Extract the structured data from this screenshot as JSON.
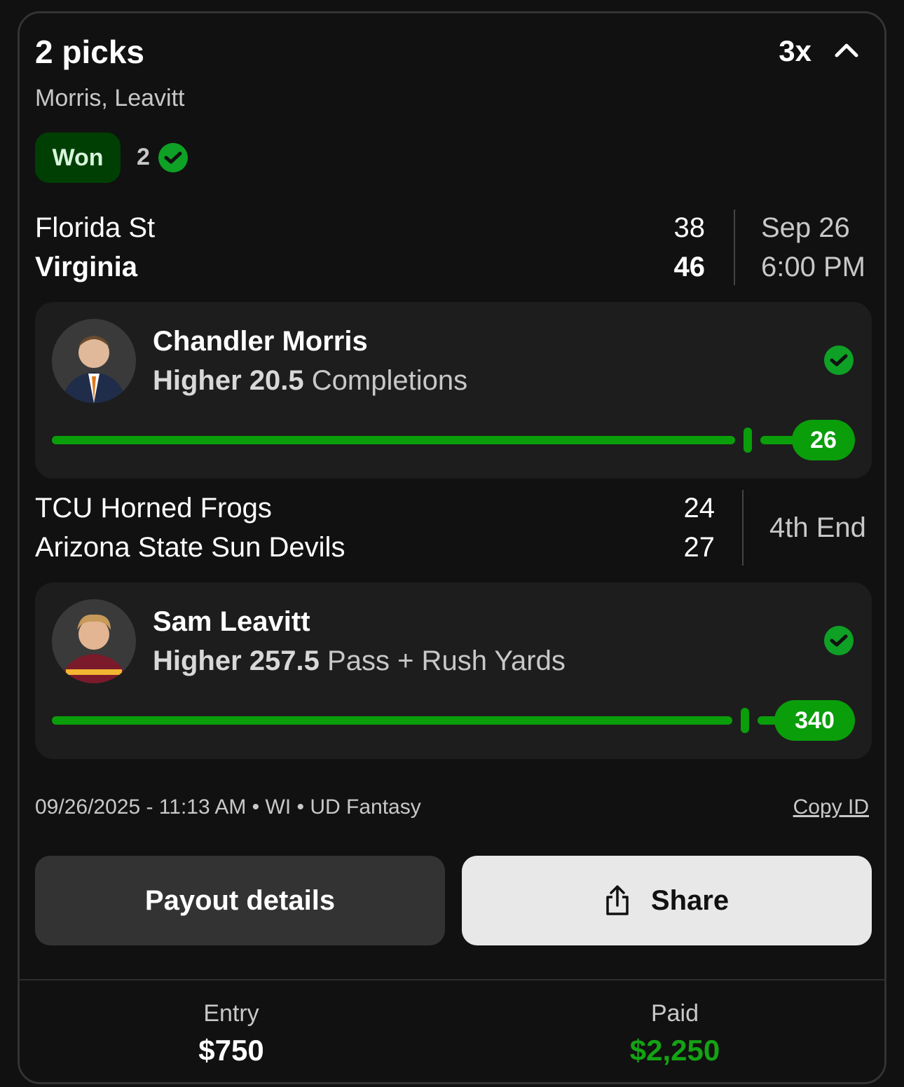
{
  "header": {
    "title": "2 picks",
    "multiplier": "3x",
    "players": "Morris, Leavitt",
    "status": "Won",
    "correct_count": "2"
  },
  "games": [
    {
      "team1": "Florida St",
      "score1": "38",
      "team2": "Virginia",
      "score2": "46",
      "date": "Sep 26",
      "time": "6:00 PM",
      "winner": "team2"
    },
    {
      "team1": "TCU Horned Frogs",
      "score1": "24",
      "team2": "Arizona State Sun Devils",
      "score2": "27",
      "status": "4th End"
    }
  ],
  "picks": [
    {
      "player": "Chandler Morris",
      "direction": "Higher",
      "line": "20.5",
      "stat": "Completions",
      "actual": "26",
      "result": "won"
    },
    {
      "player": "Sam Leavitt",
      "direction": "Higher",
      "line": "257.5",
      "stat": "Pass + Rush Yards",
      "actual": "340",
      "result": "won"
    }
  ],
  "meta": {
    "info": "09/26/2025 - 11:13 AM • WI • UD Fantasy",
    "copy_id": "Copy ID"
  },
  "buttons": {
    "payout": "Payout details",
    "share": "Share"
  },
  "footer": {
    "entry_label": "Entry",
    "entry_value": "$750",
    "paid_label": "Paid",
    "paid_value": "$2,250"
  },
  "colors": {
    "accent_green": "#0a9e0a",
    "won_badge_bg": "#003f03",
    "paid_green": "#14a314"
  }
}
